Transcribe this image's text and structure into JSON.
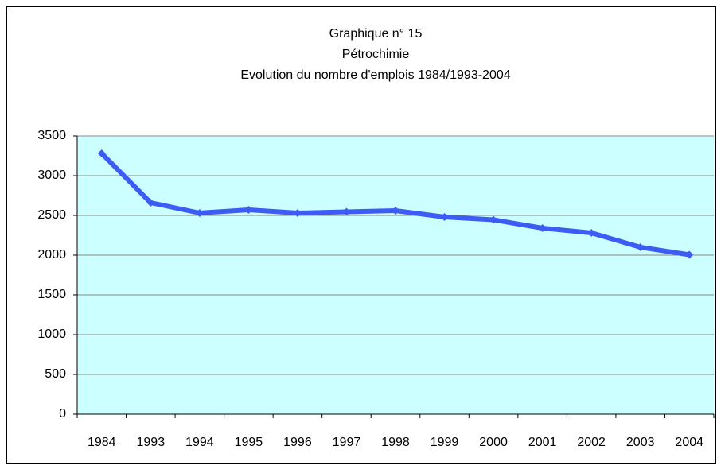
{
  "chart_data": {
    "type": "line",
    "title": [
      "Graphique n° 15",
      "Pétrochimie",
      "Evolution du nombre d'emplois 1984/1993-2004"
    ],
    "categories": [
      "1984",
      "1993",
      "1994",
      "1995",
      "1996",
      "1997",
      "1998",
      "1999",
      "2000",
      "2001",
      "2002",
      "2003",
      "2004"
    ],
    "values": [
      3280,
      2660,
      2530,
      2570,
      2530,
      2545,
      2560,
      2480,
      2445,
      2340,
      2280,
      2100,
      2005
    ],
    "color": "#3d5cf5",
    "ylim": [
      0,
      3500
    ],
    "yticks": [
      0,
      500,
      1000,
      1500,
      2000,
      2500,
      3000,
      3500
    ],
    "grid": true
  }
}
